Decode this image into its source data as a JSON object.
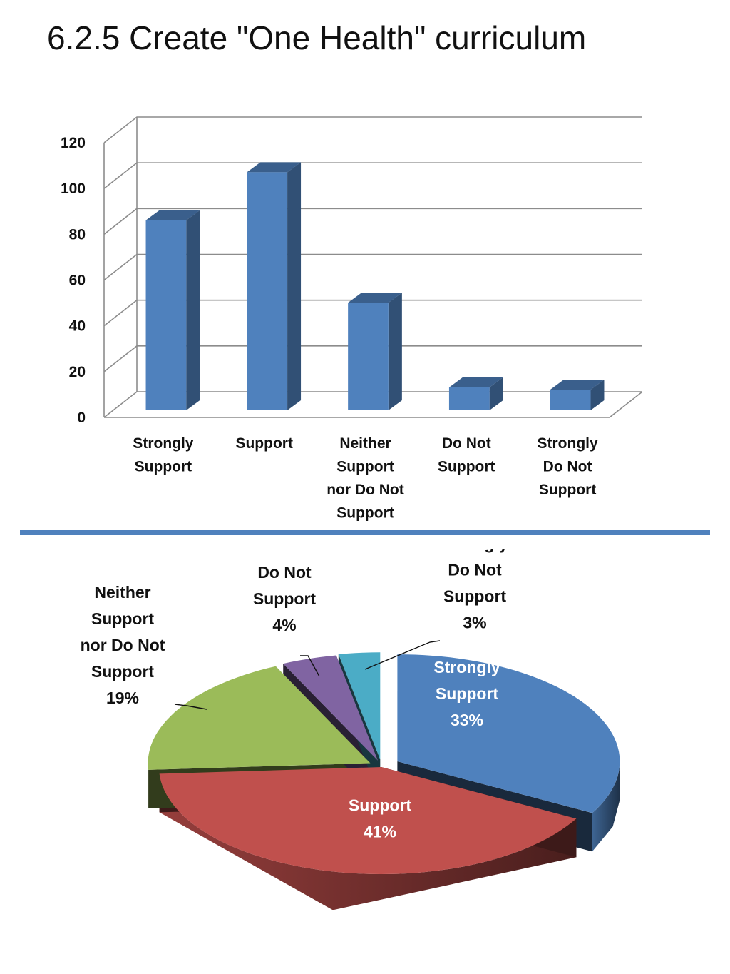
{
  "page": {
    "title": "6.2.5  Create \"One Health\" curriculum",
    "divider_color": "#4F81BD"
  },
  "chart_data": [
    {
      "type": "bar",
      "style": "3d-column",
      "title": "",
      "xlabel": "",
      "ylabel": "",
      "ylim": [
        0,
        120
      ],
      "yticks": [
        0,
        20,
        40,
        60,
        80,
        100,
        120
      ],
      "grid": true,
      "legend": "none",
      "color": "#4F81BD",
      "categories": [
        [
          "Strongly",
          "Support"
        ],
        [
          "Support"
        ],
        [
          "Neither",
          "Support",
          "nor Do Not",
          "Support"
        ],
        [
          "Do Not",
          "Support"
        ],
        [
          "Strongly",
          "Do Not",
          "Support"
        ]
      ],
      "values": [
        83,
        104,
        47,
        10,
        9
      ]
    },
    {
      "type": "pie",
      "style": "3d-exploded",
      "title": "",
      "legend": "none",
      "slices": [
        {
          "label": [
            "Strongly",
            "Support"
          ],
          "percent_label": "33%",
          "value": 33,
          "color": "#4F81BD",
          "label_color": "#ffffff"
        },
        {
          "label": [
            "Support"
          ],
          "percent_label": "41%",
          "value": 41,
          "color": "#C0504D",
          "label_color": "#ffffff"
        },
        {
          "label": [
            "Neither",
            "Support",
            "nor Do Not",
            "Support"
          ],
          "percent_label": "19%",
          "value": 19,
          "color": "#9BBB59",
          "label_color": "#111111"
        },
        {
          "label": [
            "Do Not",
            "Support"
          ],
          "percent_label": "4%",
          "value": 4,
          "color": "#8064A2",
          "label_color": "#111111"
        },
        {
          "label": [
            "Strongly",
            "Do Not",
            "Support"
          ],
          "percent_label": "3%",
          "value": 3,
          "color": "#4BACC6",
          "label_color": "#111111"
        }
      ]
    }
  ]
}
